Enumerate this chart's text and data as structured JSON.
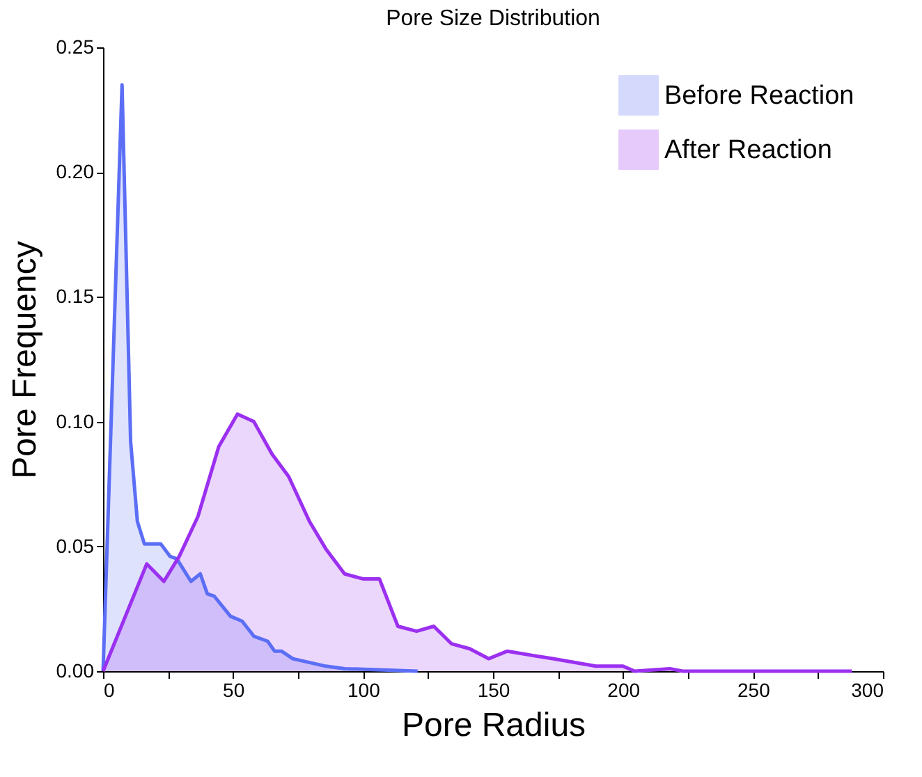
{
  "chart_data": {
    "type": "area",
    "title": "Pore Size Distribution",
    "xlabel": "Pore Radius",
    "ylabel": "Pore Frequency",
    "xlim": [
      0,
      300
    ],
    "xticks": [
      0,
      {
        "value": 25,
        "label": null
      },
      50,
      {
        "value": 75,
        "label": null
      },
      100,
      {
        "value": 125,
        "label": null
      },
      150,
      {
        "value": 175,
        "label": null
      },
      200,
      {
        "value": 225,
        "label": null
      },
      250,
      {
        "value": 275,
        "label": null
      },
      300
    ],
    "ylim": [
      0,
      0.25
    ],
    "yticks": [
      {
        "value": 0,
        "label": "0.00"
      },
      {
        "value": 0.05,
        "label": "0.05"
      },
      {
        "value": 0.1,
        "label": "0.10"
      },
      {
        "value": 0.15,
        "label": "0.15"
      },
      {
        "value": 0.2,
        "label": "0.20"
      },
      {
        "value": 0.25,
        "label": "0.25"
      }
    ],
    "legend": "top right",
    "grid": false,
    "series": [
      {
        "name": "Before Reaction",
        "color": "#5b6ef5",
        "x": [
          0,
          7.3,
          10.6,
          13.2,
          15.9,
          22.2,
          25.8,
          28.4,
          33.8,
          37.4,
          40.1,
          42.8,
          49,
          53.5,
          58,
          63.3,
          66,
          68.7,
          73,
          85.7,
          93,
          121
        ],
        "values": [
          0,
          0.235,
          0.092,
          0.06,
          0.051,
          0.051,
          0.046,
          0.045,
          0.036,
          0.039,
          0.031,
          0.03,
          0.022,
          0.02,
          0.014,
          0.012,
          0.008,
          0.008,
          0.005,
          0.002,
          0.001,
          0
        ]
      },
      {
        "name": "After Reaction",
        "color": "#9b30f0",
        "x": [
          0,
          16.8,
          23.4,
          29.3,
          36.5,
          44.5,
          51.7,
          58,
          65,
          71.4,
          79.4,
          85.7,
          92.9,
          100,
          106.3,
          113.4,
          120.6,
          127.2,
          134,
          141,
          148.3,
          155.4,
          167,
          173,
          189.5,
          200,
          204.5,
          218,
          223,
          288
        ],
        "values": [
          0,
          0.043,
          0.036,
          0.046,
          0.062,
          0.09,
          0.103,
          0.1,
          0.087,
          0.078,
          0.06,
          0.049,
          0.039,
          0.037,
          0.037,
          0.018,
          0.016,
          0.018,
          0.011,
          0.009,
          0.005,
          0.008,
          0.006,
          0.005,
          0.002,
          0.002,
          0,
          0.001,
          0,
          0
        ]
      }
    ]
  }
}
